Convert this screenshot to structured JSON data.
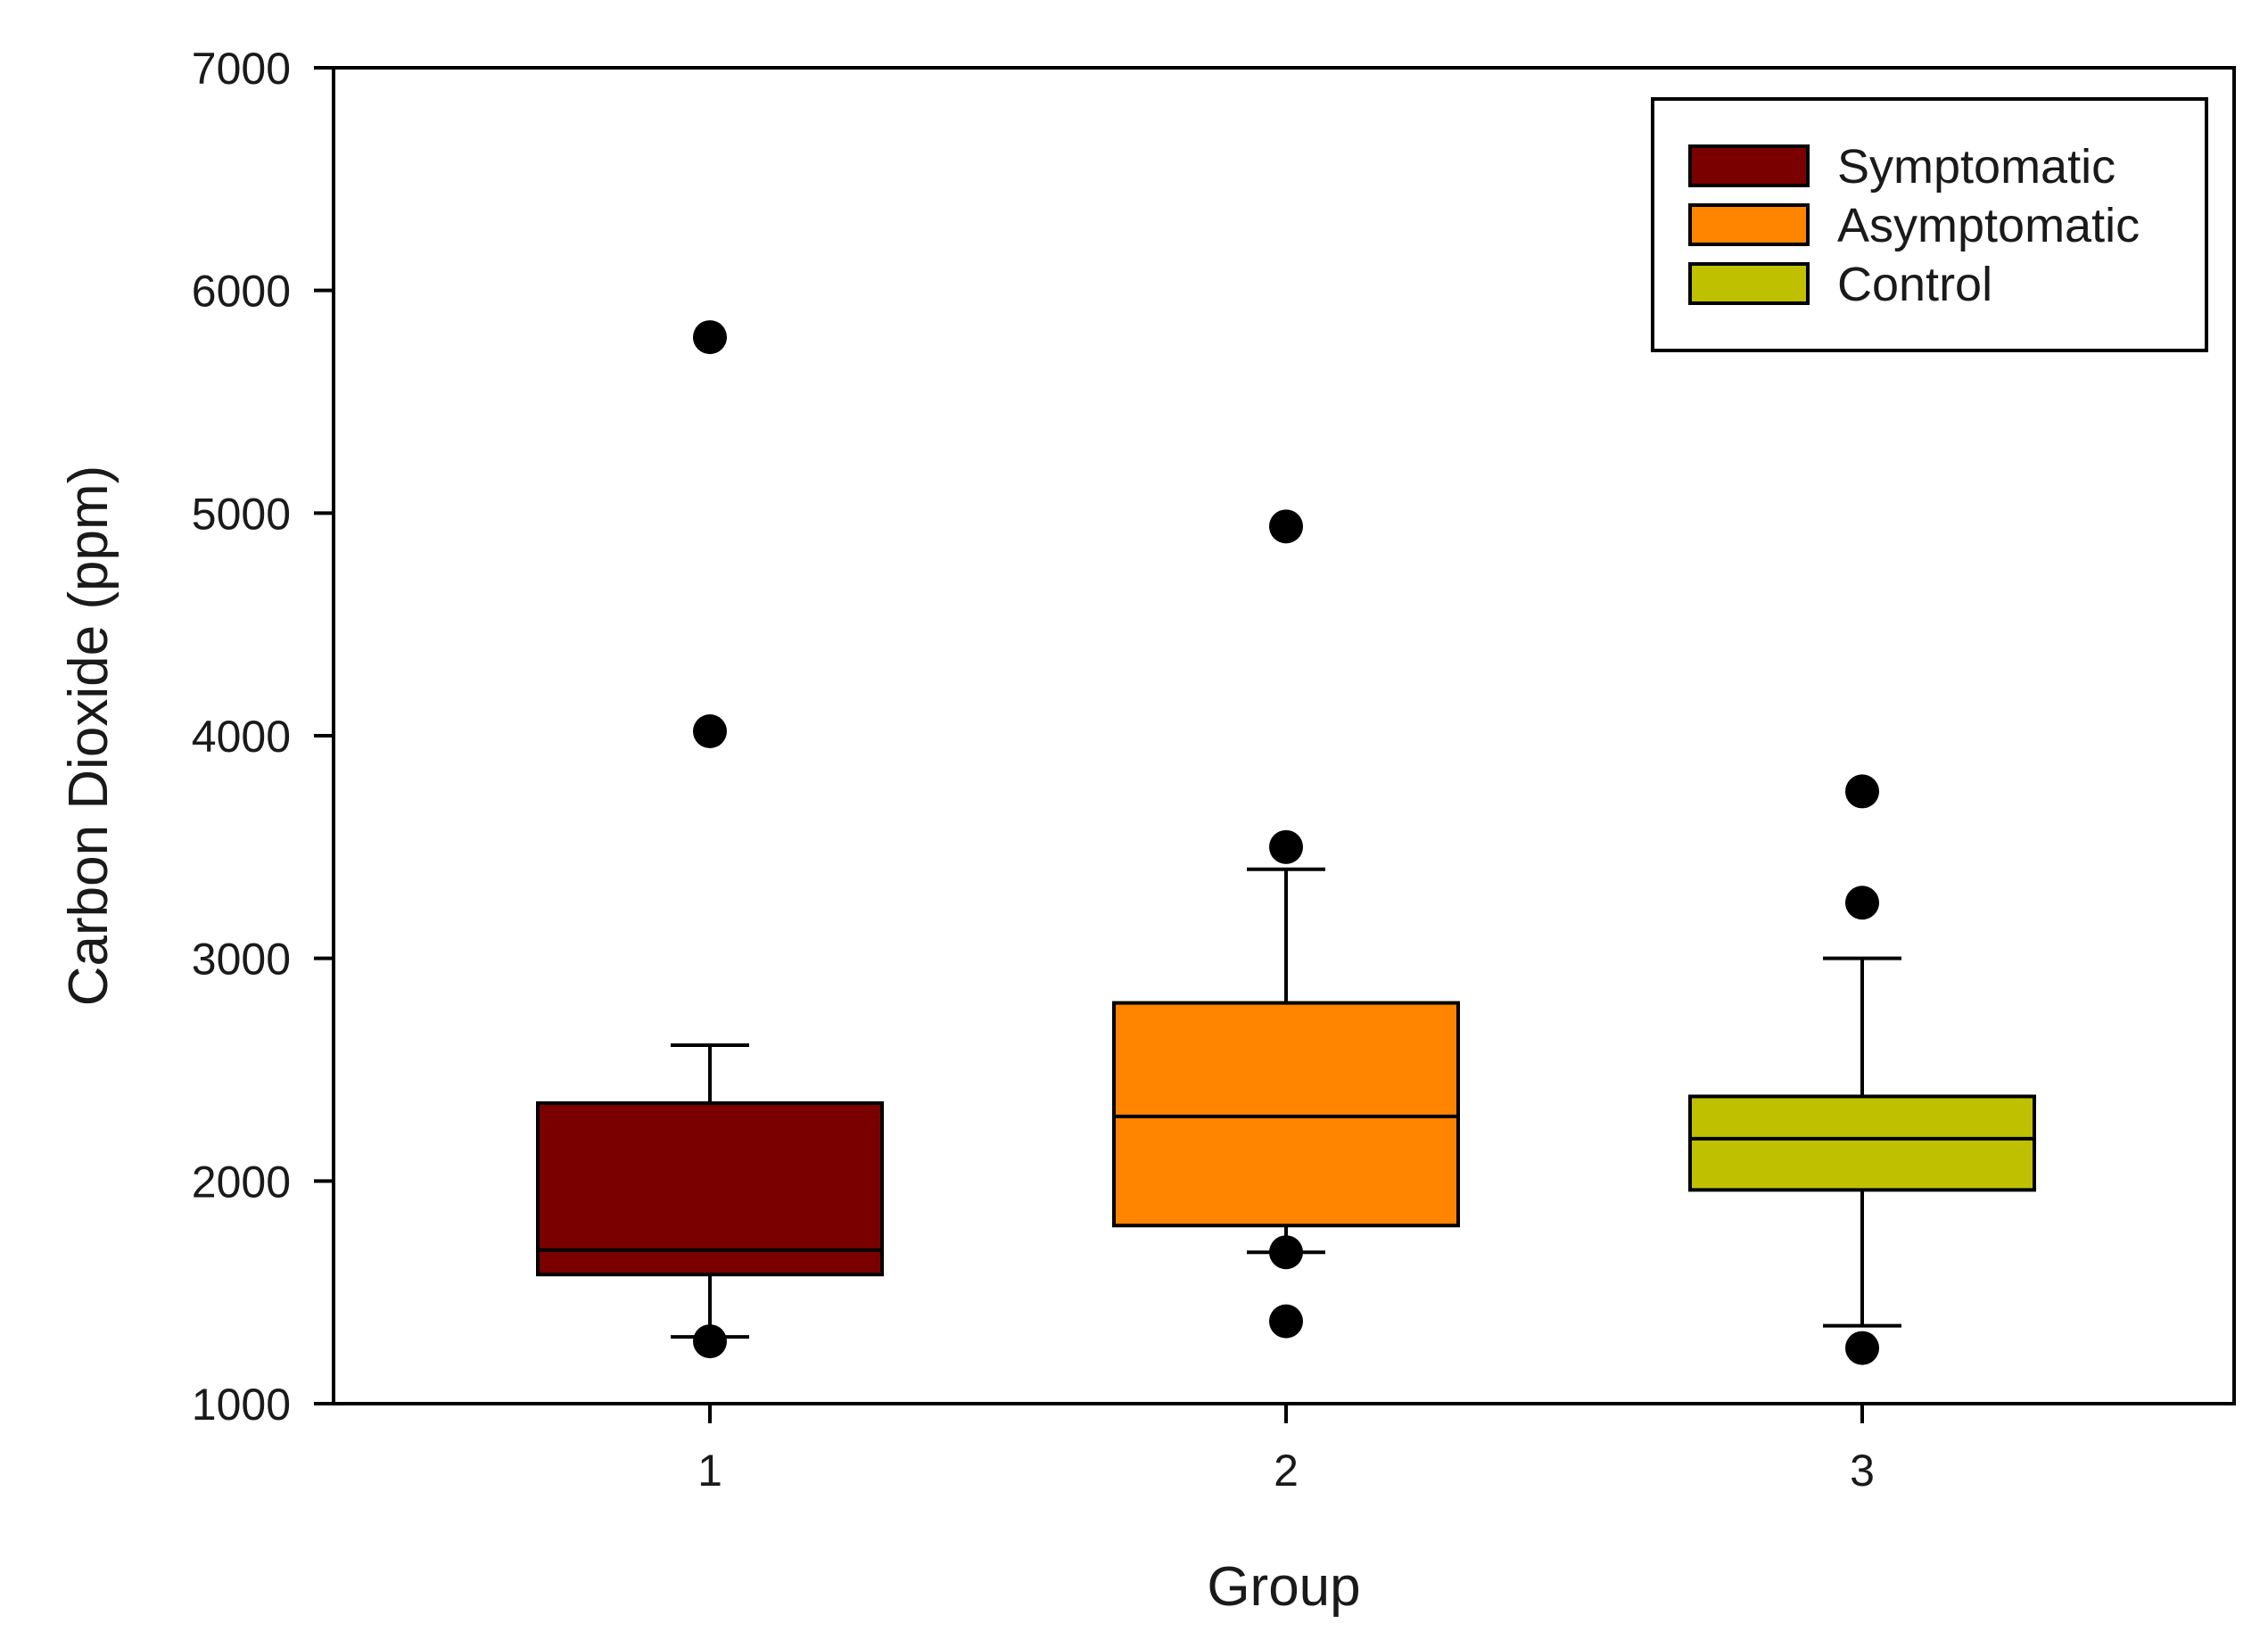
{
  "chart_data": {
    "type": "box",
    "title": "",
    "xlabel": "Group",
    "ylabel": "Carbon Dioxide (ppm)",
    "ylim": [
      1000,
      7000
    ],
    "yticks": [
      1000,
      2000,
      3000,
      4000,
      5000,
      6000,
      7000
    ],
    "grid": false,
    "legend_position": "top-right",
    "categories": [
      "1",
      "2",
      "3"
    ],
    "series": [
      {
        "name": "Symptomatic",
        "category": "1",
        "color": "#7a0000",
        "whisker_low": 1300,
        "q1": 1580,
        "median": 1690,
        "q3": 2350,
        "whisker_high": 2610,
        "outliers": [
          1280,
          4020,
          5790
        ]
      },
      {
        "name": "Asymptomatic",
        "category": "2",
        "color": "#ff8400",
        "whisker_low": 1680,
        "q1": 1800,
        "median": 2290,
        "q3": 2800,
        "whisker_high": 3400,
        "outliers": [
          1680,
          1370,
          3500,
          4940
        ]
      },
      {
        "name": "Control",
        "category": "3",
        "color": "#bfc000",
        "whisker_low": 1350,
        "q1": 1960,
        "median": 2190,
        "q3": 2380,
        "whisker_high": 3000,
        "outliers": [
          1250,
          3250,
          3750
        ]
      }
    ]
  }
}
